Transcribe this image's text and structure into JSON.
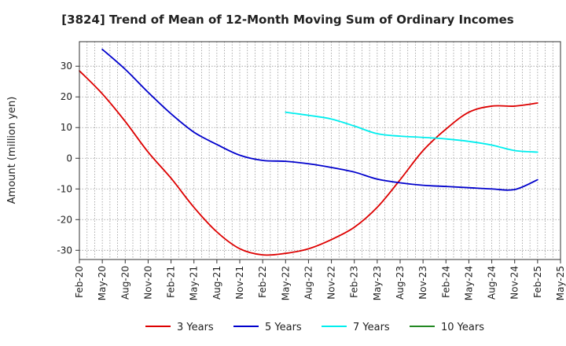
{
  "chart_data": {
    "type": "line",
    "title": "[3824]  Trend of Mean of 12-Month Moving Sum of Ordinary Incomes",
    "xlabel": "",
    "ylabel": "Amount (million yen)",
    "ylim": [
      -33,
      38
    ],
    "yticks": [
      -30,
      -20,
      -10,
      0,
      10,
      20,
      30
    ],
    "grid": true,
    "legend_position": "bottom",
    "x_tick_labels": [
      "Feb-20",
      "May-20",
      "Aug-20",
      "Nov-20",
      "Feb-21",
      "May-21",
      "Aug-21",
      "Nov-21",
      "Feb-22",
      "May-22",
      "Aug-22",
      "Nov-22",
      "Feb-23",
      "May-23",
      "Aug-23",
      "Nov-23",
      "Feb-24",
      "May-24",
      "Aug-24",
      "Nov-24",
      "Feb-25",
      "May-25"
    ],
    "series": [
      {
        "name": "3 Years",
        "color": "#dd0000",
        "x": [
          "Feb-20",
          "May-20",
          "Aug-20",
          "Nov-20",
          "Feb-21",
          "May-21",
          "Aug-21",
          "Nov-21",
          "Feb-22",
          "May-22",
          "Aug-22",
          "Nov-22",
          "Feb-23",
          "May-23",
          "Aug-23",
          "Nov-23",
          "Feb-24",
          "May-24",
          "Aug-24",
          "Nov-24",
          "Feb-25"
        ],
        "values": [
          28.5,
          21,
          12,
          2,
          -6.5,
          -16,
          -24,
          -29.5,
          -31.5,
          -31,
          -29.5,
          -26.5,
          -22.5,
          -16,
          -7,
          2.5,
          9.5,
          15,
          17,
          17,
          18
        ]
      },
      {
        "name": "5 Years",
        "color": "#0000cc",
        "x": [
          "May-20",
          "Aug-20",
          "Nov-20",
          "Feb-21",
          "May-21",
          "Aug-21",
          "Nov-21",
          "Feb-22",
          "May-22",
          "Aug-22",
          "Nov-22",
          "Feb-23",
          "May-23",
          "Aug-23",
          "Nov-23",
          "Feb-24",
          "May-24",
          "Aug-24",
          "Nov-24",
          "Feb-25"
        ],
        "values": [
          35.5,
          29,
          21.5,
          14.5,
          8.5,
          4.5,
          1,
          -0.7,
          -1,
          -1.8,
          -3,
          -4.5,
          -6.8,
          -8,
          -8.8,
          -9.2,
          -9.6,
          -10,
          -10.2,
          -7
        ]
      },
      {
        "name": "7 Years",
        "color": "#00eeee",
        "x": [
          "May-22",
          "Aug-22",
          "Nov-22",
          "Feb-23",
          "May-23",
          "Aug-23",
          "Nov-23",
          "Feb-24",
          "May-24",
          "Aug-24",
          "Nov-24",
          "Feb-25"
        ],
        "values": [
          15,
          14,
          12.8,
          10.5,
          8,
          7.2,
          6.8,
          6.3,
          5.5,
          4.3,
          2.5,
          2
        ]
      },
      {
        "name": "10 Years",
        "color": "#228822",
        "x": [],
        "values": []
      }
    ]
  }
}
